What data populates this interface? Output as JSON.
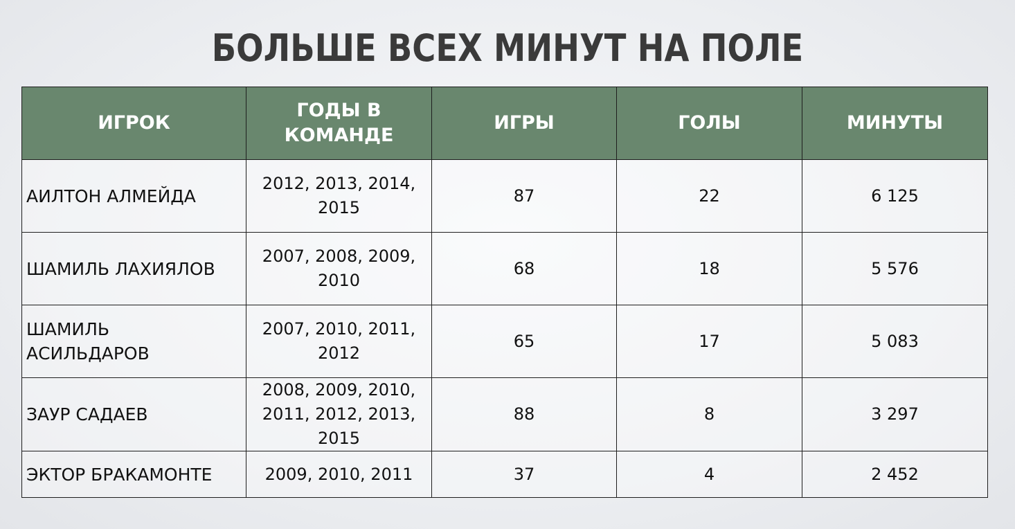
{
  "title": "БОЛЬШЕ ВСЕХ МИНУТ НА ПОЛЕ",
  "table": {
    "headers": [
      "ИГРОК",
      "ГОДЫ В КОМАНДЕ",
      "ИГРЫ",
      "ГОЛЫ",
      "МИНУТЫ"
    ],
    "rows": [
      {
        "player": "АИЛТОН АЛМЕЙДА",
        "years": "2012, 2013, 2014, 2015",
        "games": "87",
        "goals": "22",
        "minutes": "6 125"
      },
      {
        "player": "ШАМИЛЬ ЛАХИЯЛОВ",
        "years": "2007, 2008, 2009, 2010",
        "games": "68",
        "goals": "18",
        "minutes": "5 576"
      },
      {
        "player": "ШАМИЛЬ АСИЛЬДАРОВ",
        "years": "2007, 2010, 2011, 2012",
        "games": "65",
        "goals": "17",
        "minutes": "5 083"
      },
      {
        "player": "ЗАУР САДАЕВ",
        "years": "2008, 2009, 2010, 2011, 2012, 2013, 2015",
        "games": "88",
        "goals": "8",
        "minutes": "3 297"
      },
      {
        "player": "ЭКТОР БРАКАМОНТЕ",
        "years": "2009, 2010, 2011",
        "games": "37",
        "goals": "4",
        "minutes": "2 452"
      }
    ]
  },
  "colors": {
    "header_bg": "#69876e",
    "header_text": "#ffffff",
    "title_text": "#3a3a3a",
    "border": "#1e1e1e"
  }
}
